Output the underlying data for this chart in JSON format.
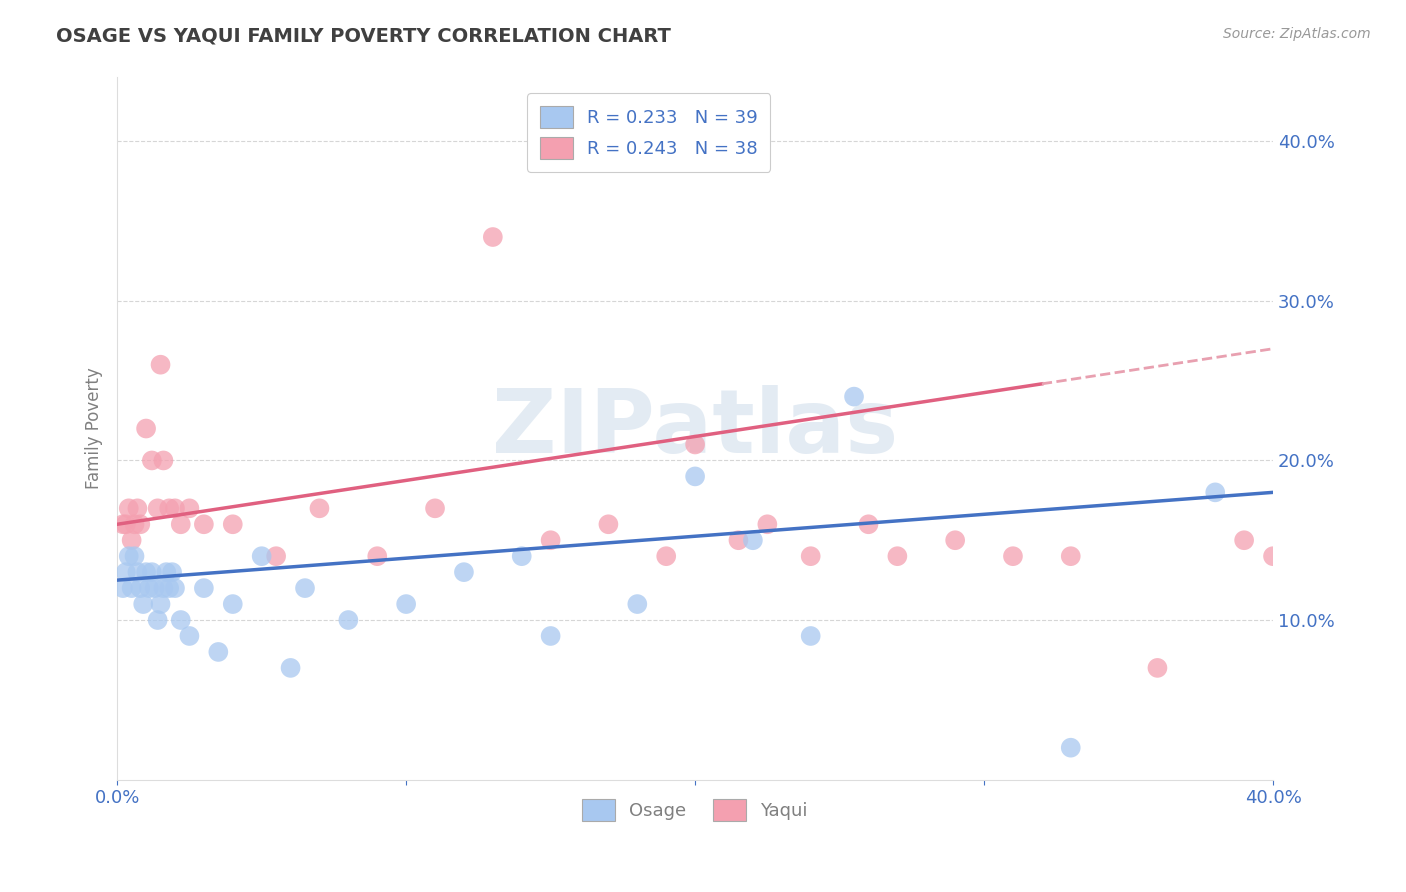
{
  "title": "OSAGE VS YAQUI FAMILY POVERTY CORRELATION CHART",
  "source": "Source: ZipAtlas.com",
  "ylabel": "Family Poverty",
  "watermark": "ZIPatlas",
  "xlim": [
    0.0,
    0.4
  ],
  "ylim": [
    0.0,
    0.44
  ],
  "xticks": [
    0.0,
    0.1,
    0.2,
    0.3,
    0.4
  ],
  "xticklabels": [
    "0.0%",
    "",
    "",
    "",
    "40.0%"
  ],
  "yticks": [
    0.1,
    0.2,
    0.3,
    0.4
  ],
  "yticklabels": [
    "10.0%",
    "20.0%",
    "30.0%",
    "40.0%"
  ],
  "osage_color": "#a8c8f0",
  "yaqui_color": "#f4a0b0",
  "osage_line_color": "#4472c4",
  "yaqui_line_color": "#e06080",
  "yaqui_dashed_color": "#e8a0b0",
  "legend_text_color": "#4472c4",
  "title_color": "#404040",
  "axis_label_color": "#808080",
  "tick_color": "#4472c4",
  "grid_color": "#cccccc",
  "R_osage": 0.233,
  "N_osage": 39,
  "R_yaqui": 0.243,
  "N_yaqui": 38,
  "osage_x": [
    0.002,
    0.003,
    0.004,
    0.005,
    0.006,
    0.007,
    0.008,
    0.009,
    0.01,
    0.011,
    0.012,
    0.013,
    0.014,
    0.015,
    0.016,
    0.017,
    0.018,
    0.019,
    0.02,
    0.022,
    0.025,
    0.03,
    0.035,
    0.04,
    0.05,
    0.06,
    0.065,
    0.08,
    0.1,
    0.12,
    0.14,
    0.15,
    0.18,
    0.2,
    0.22,
    0.24,
    0.255,
    0.33,
    0.38
  ],
  "osage_y": [
    0.12,
    0.13,
    0.14,
    0.12,
    0.14,
    0.13,
    0.12,
    0.11,
    0.13,
    0.12,
    0.13,
    0.12,
    0.1,
    0.11,
    0.12,
    0.13,
    0.12,
    0.13,
    0.12,
    0.1,
    0.09,
    0.12,
    0.08,
    0.11,
    0.14,
    0.07,
    0.12,
    0.1,
    0.11,
    0.13,
    0.14,
    0.09,
    0.11,
    0.19,
    0.15,
    0.09,
    0.24,
    0.02,
    0.18
  ],
  "yaqui_x": [
    0.002,
    0.003,
    0.004,
    0.005,
    0.006,
    0.007,
    0.008,
    0.01,
    0.012,
    0.014,
    0.015,
    0.016,
    0.018,
    0.02,
    0.022,
    0.025,
    0.03,
    0.04,
    0.055,
    0.07,
    0.09,
    0.11,
    0.13,
    0.15,
    0.17,
    0.19,
    0.2,
    0.215,
    0.225,
    0.24,
    0.26,
    0.27,
    0.29,
    0.31,
    0.33,
    0.36,
    0.39,
    0.4
  ],
  "yaqui_y": [
    0.16,
    0.16,
    0.17,
    0.15,
    0.16,
    0.17,
    0.16,
    0.22,
    0.2,
    0.17,
    0.26,
    0.2,
    0.17,
    0.17,
    0.16,
    0.17,
    0.16,
    0.16,
    0.14,
    0.17,
    0.14,
    0.17,
    0.34,
    0.15,
    0.16,
    0.14,
    0.21,
    0.15,
    0.16,
    0.14,
    0.16,
    0.14,
    0.15,
    0.14,
    0.14,
    0.07,
    0.15,
    0.14
  ],
  "background_color": "#ffffff",
  "plot_bg_color": "#ffffff",
  "osage_line_start_y": 0.125,
  "osage_line_end_y": 0.18,
  "yaqui_line_start_y": 0.16,
  "yaqui_line_end_y": 0.27
}
